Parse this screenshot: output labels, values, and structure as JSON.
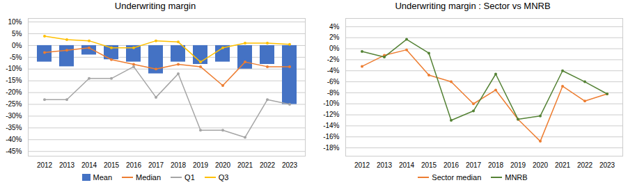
{
  "chart_data": [
    {
      "type": "bar",
      "title": "Underwriting margin",
      "categories": [
        "2012",
        "2013",
        "2014",
        "2015",
        "2016",
        "2017",
        "2018",
        "2019",
        "2020",
        "2021",
        "2022",
        "2023"
      ],
      "series": [
        {
          "name": "Mean",
          "type": "bar",
          "color": "#4472C4",
          "values": [
            -0.07,
            -0.09,
            -0.04,
            -0.06,
            -0.07,
            -0.12,
            -0.07,
            -0.08,
            -0.07,
            -0.1,
            -0.08,
            -0.25
          ]
        },
        {
          "name": "Median",
          "type": "line",
          "marker": "circle",
          "color": "#ED7D31",
          "values": [
            -0.03,
            -0.02,
            -0.01,
            -0.06,
            -0.08,
            -0.1,
            -0.08,
            -0.09,
            -0.17,
            -0.07,
            -0.09,
            -0.09
          ]
        },
        {
          "name": "Q1",
          "type": "line",
          "marker": "circle",
          "color": "#A5A5A5",
          "values": [
            -0.23,
            -0.23,
            -0.14,
            -0.14,
            -0.09,
            -0.22,
            -0.12,
            -0.36,
            -0.36,
            -0.39,
            -0.23,
            -0.25
          ]
        },
        {
          "name": "Q3",
          "type": "line",
          "marker": "circle",
          "color": "#FFC000",
          "values": [
            0.04,
            0.025,
            0.02,
            -0.01,
            -0.01,
            0.02,
            0.015,
            -0.07,
            -0.01,
            0.01,
            0.01,
            0.005
          ]
        }
      ],
      "ylim": [
        -0.47,
        0.115
      ],
      "yticks": [
        {
          "value": 0.1,
          "label": "10%"
        },
        {
          "value": 0.05,
          "label": "5%"
        },
        {
          "value": 0.0,
          "label": "0%"
        },
        {
          "value": -0.05,
          "label": "-5%"
        },
        {
          "value": -0.1,
          "label": "-10%"
        },
        {
          "value": -0.15,
          "label": "-15%"
        },
        {
          "value": -0.2,
          "label": "-20%"
        },
        {
          "value": -0.25,
          "label": "-25%"
        },
        {
          "value": -0.3,
          "label": "-30%"
        },
        {
          "value": -0.35,
          "label": "-35%"
        },
        {
          "value": -0.4,
          "label": "-40%"
        },
        {
          "value": -0.45,
          "label": "-45%"
        }
      ],
      "grid": true,
      "legend": "bottom"
    },
    {
      "type": "line",
      "title": "Underwriting margin : Sector vs MNRB",
      "categories": [
        "2012",
        "2013",
        "2014",
        "2015",
        "2016",
        "2017",
        "2018",
        "2019",
        "2020",
        "2021",
        "2022",
        "2023"
      ],
      "series": [
        {
          "name": "Sector median",
          "type": "line",
          "marker": "circle",
          "color": "#ED7D31",
          "values": [
            -0.032,
            -0.012,
            -0.002,
            -0.048,
            -0.06,
            -0.1,
            -0.075,
            -0.128,
            -0.168,
            -0.068,
            -0.095,
            -0.082
          ]
        },
        {
          "name": "MNRB",
          "type": "line",
          "marker": "circle",
          "color": "#548235",
          "values": [
            -0.005,
            -0.015,
            0.017,
            -0.008,
            -0.13,
            -0.113,
            -0.046,
            -0.128,
            -0.122,
            -0.04,
            -0.06,
            -0.082
          ]
        }
      ],
      "ylim": [
        -0.195,
        0.055
      ],
      "yticks": [
        {
          "value": 0.04,
          "label": "4%"
        },
        {
          "value": 0.02,
          "label": "2%"
        },
        {
          "value": 0.0,
          "label": "0%"
        },
        {
          "value": -0.02,
          "label": "-2%"
        },
        {
          "value": -0.04,
          "label": "-4%"
        },
        {
          "value": -0.06,
          "label": "-6%"
        },
        {
          "value": -0.08,
          "label": "-8%"
        },
        {
          "value": -0.1,
          "label": "-10%"
        },
        {
          "value": -0.12,
          "label": "-12%"
        },
        {
          "value": -0.14,
          "label": "-14%"
        },
        {
          "value": -0.16,
          "label": "-16%"
        },
        {
          "value": -0.18,
          "label": "-18%"
        }
      ],
      "grid": true,
      "legend": "bottom"
    }
  ]
}
